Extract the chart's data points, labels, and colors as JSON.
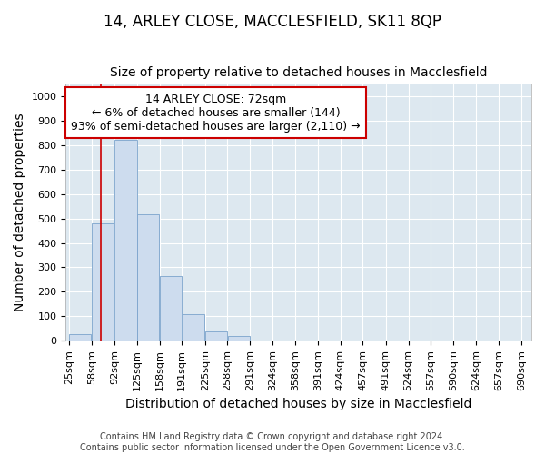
{
  "title": "14, ARLEY CLOSE, MACCLESFIELD, SK11 8QP",
  "subtitle": "Size of property relative to detached houses in Macclesfield",
  "xlabel": "Distribution of detached houses by size in Macclesfield",
  "ylabel": "Number of detached properties",
  "bar_color": "#cddcee",
  "bar_edge_color": "#7ba3cc",
  "background_color": "#dde8f0",
  "grid_color": "#ffffff",
  "vline_x": 72,
  "vline_color": "#cc0000",
  "annotation_line1": "14 ARLEY CLOSE: 72sqm",
  "annotation_line2": "← 6% of detached houses are smaller (144)",
  "annotation_line3": "93% of semi-detached houses are larger (2,110) →",
  "annotation_box_color": "white",
  "annotation_box_edge": "#cc0000",
  "bins_left": [
    25,
    58,
    92,
    125,
    158,
    191,
    225,
    258,
    291,
    324,
    358,
    391,
    424,
    457,
    491,
    524,
    557,
    590,
    624,
    657
  ],
  "bin_width": 33,
  "bar_heights": [
    28,
    480,
    820,
    517,
    265,
    110,
    38,
    20,
    0,
    0,
    0,
    0,
    0,
    0,
    0,
    0,
    0,
    0,
    0,
    0
  ],
  "ylim": [
    0,
    1050
  ],
  "yticks": [
    0,
    100,
    200,
    300,
    400,
    500,
    600,
    700,
    800,
    900,
    1000
  ],
  "xtick_labels": [
    "25sqm",
    "58sqm",
    "92sqm",
    "125sqm",
    "158sqm",
    "191sqm",
    "225sqm",
    "258sqm",
    "291sqm",
    "324sqm",
    "358sqm",
    "391sqm",
    "424sqm",
    "457sqm",
    "491sqm",
    "524sqm",
    "557sqm",
    "590sqm",
    "624sqm",
    "657sqm",
    "690sqm"
  ],
  "footer_line1": "Contains HM Land Registry data © Crown copyright and database right 2024.",
  "footer_line2": "Contains public sector information licensed under the Open Government Licence v3.0.",
  "title_fontsize": 12,
  "subtitle_fontsize": 10,
  "axis_label_fontsize": 10,
  "tick_fontsize": 8,
  "annotation_fontsize": 9,
  "footer_fontsize": 7
}
